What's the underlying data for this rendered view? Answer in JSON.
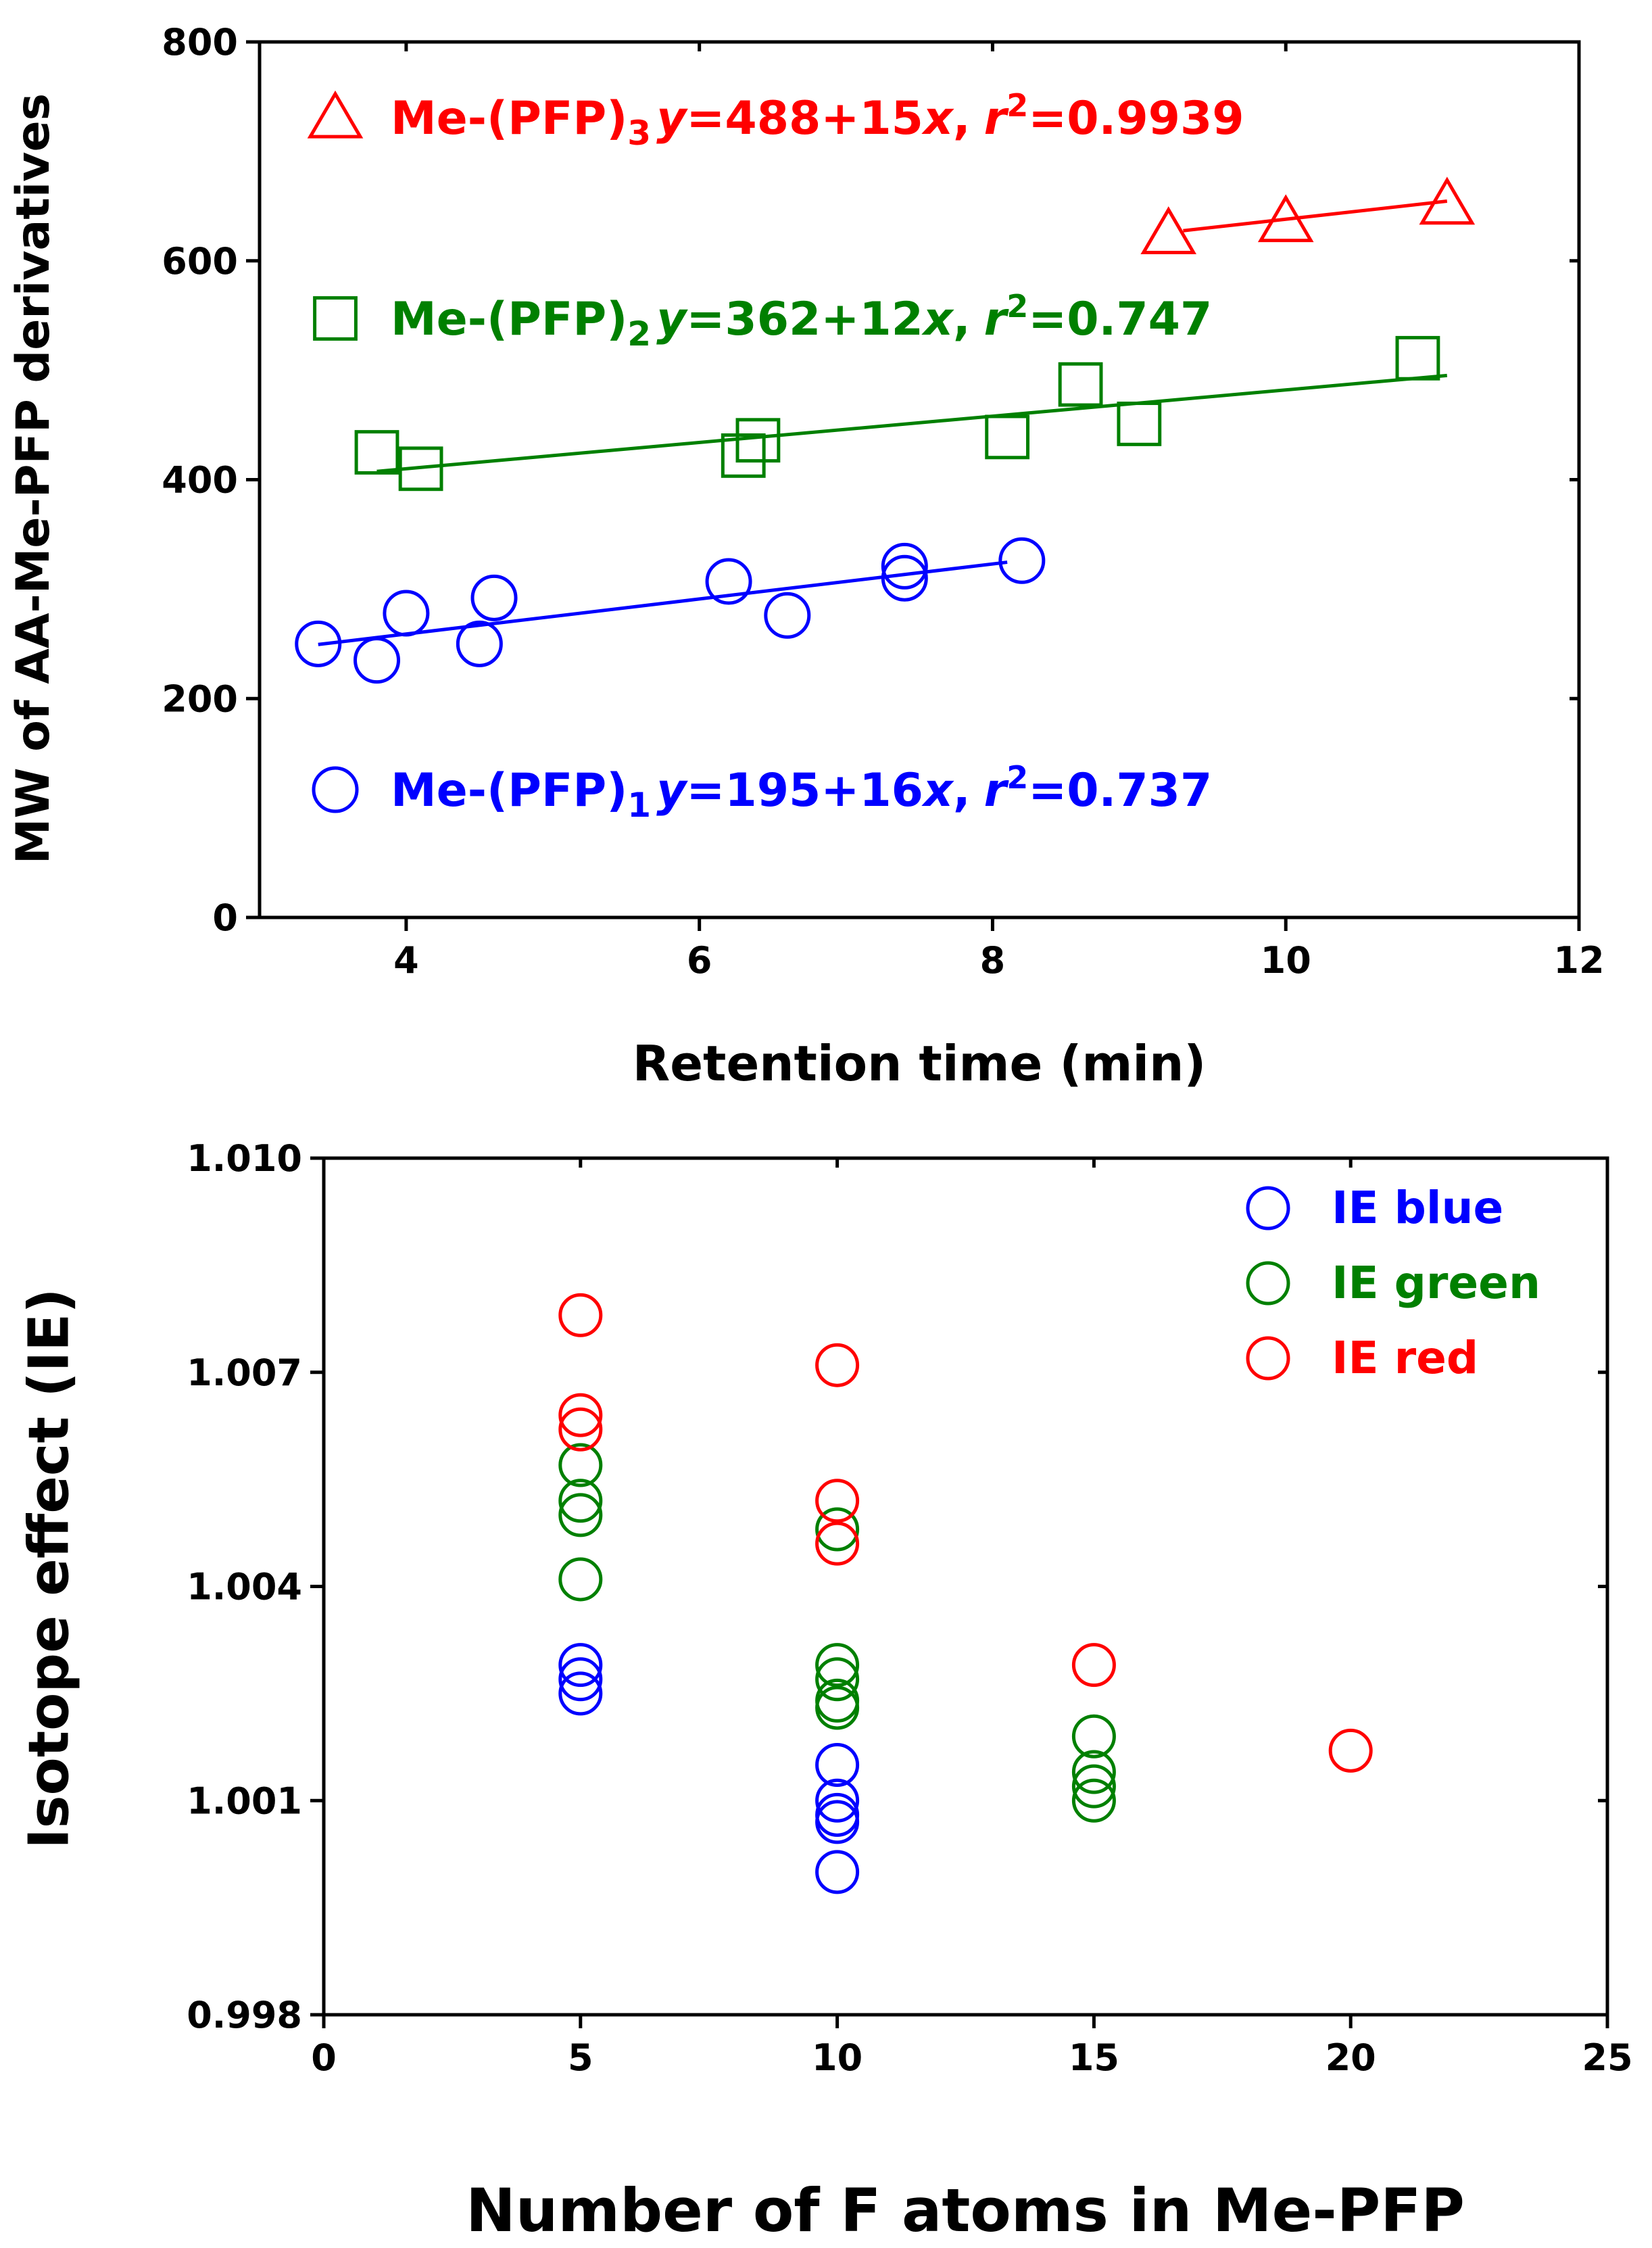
{
  "chart_data": [
    {
      "type": "scatter",
      "title": "",
      "xlabel": "Retention time (min)",
      "ylabel": "MW of AA-Me-PFP derivatives",
      "xlim": [
        3,
        12
      ],
      "ylim": [
        0,
        800
      ],
      "xticks": [
        4,
        6,
        8,
        10,
        12
      ],
      "yticks": [
        0,
        200,
        400,
        600,
        800
      ],
      "grid": false,
      "legend": "top-left",
      "series": [
        {
          "name": "Me-(PFP)3",
          "label": {
            "base": "Me-(PFP)",
            "sub": "3"
          },
          "equation": {
            "y": "y",
            "eq": "=488+15",
            "x": "x",
            "sep": ",",
            "r": "r",
            "sup": "2",
            "r2": "=0.9939"
          },
          "color": "#ff0000",
          "marker": "triangle",
          "fit": {
            "intercept": 488,
            "slope": 15,
            "x_range": [
              9.3,
              11.1
            ]
          },
          "x": [
            9.2,
            10.0,
            11.1
          ],
          "y": [
            625,
            636,
            652
          ]
        },
        {
          "name": "Me-(PFP)2",
          "label": {
            "base": "Me-(PFP)",
            "sub": "2"
          },
          "equation": {
            "y": "y",
            "eq": "=362+12",
            "x": "x",
            "sep": ",",
            "r": "r",
            "sup": "2",
            "r2": "=0.747"
          },
          "color": "#008000",
          "marker": "square",
          "fit": {
            "intercept": 362,
            "slope": 12,
            "x_range": [
              3.8,
              11.1
            ]
          },
          "x": [
            3.8,
            4.1,
            6.3,
            6.4,
            8.1,
            8.6,
            9.0,
            10.9
          ],
          "y": [
            425,
            410,
            422,
            436,
            439,
            487,
            451,
            511
          ]
        },
        {
          "name": "Me-(PFP)1",
          "label": {
            "base": "Me-(PFP)",
            "sub": "1"
          },
          "equation": {
            "y": "y",
            "eq": "=195+16",
            "x": "x",
            "sep": ",",
            "r": "r",
            "sup": "2",
            "r2": "=0.737"
          },
          "color": "#0000ff",
          "marker": "circle",
          "fit": {
            "intercept": 195,
            "slope": 16,
            "x_range": [
              3.4,
              8.1
            ]
          },
          "x": [
            3.4,
            3.8,
            4.0,
            4.5,
            4.6,
            6.2,
            6.6,
            7.4,
            7.4,
            8.2
          ],
          "y": [
            250,
            235,
            278,
            250,
            292,
            307,
            276,
            321,
            310,
            326
          ]
        }
      ]
    },
    {
      "type": "scatter",
      "title": "",
      "xlabel": "Number of F atoms in Me-PFP",
      "ylabel": "Isotope effect (IE)",
      "xlim": [
        0,
        25
      ],
      "ylim": [
        0.998,
        1.01
      ],
      "xticks": [
        "0",
        "5",
        "10",
        "15",
        "20",
        "25"
      ],
      "yticks": [
        "0.998",
        "1.001",
        "1.004",
        "1.007",
        "1.010"
      ],
      "grid": false,
      "legend": "top-right",
      "series": [
        {
          "name": "IE blue",
          "color": "#0000ff",
          "marker": "circle",
          "x": [
            5,
            5,
            5,
            10,
            10,
            10,
            10,
            10
          ],
          "y": [
            1.0029,
            1.0027,
            1.0025,
            1.0015,
            1.001,
            1.0007,
            1.0008,
            1.0
          ]
        },
        {
          "name": "IE green",
          "color": "#008000",
          "marker": "circle",
          "x": [
            5,
            5,
            5,
            5,
            10,
            10,
            10,
            10,
            10,
            15,
            15,
            15,
            15
          ],
          "y": [
            1.0057,
            1.0052,
            1.005,
            1.0041,
            1.0048,
            1.0029,
            1.0027,
            1.0023,
            1.0024,
            1.0019,
            1.0014,
            1.0012,
            1.001
          ]
        },
        {
          "name": "IE red",
          "color": "#ff0000",
          "marker": "circle",
          "x": [
            5,
            5,
            5,
            10,
            10,
            10,
            15,
            20
          ],
          "y": [
            1.0078,
            1.0064,
            1.0062,
            1.0071,
            1.0052,
            1.0046,
            1.0029,
            1.0017
          ]
        }
      ]
    }
  ]
}
